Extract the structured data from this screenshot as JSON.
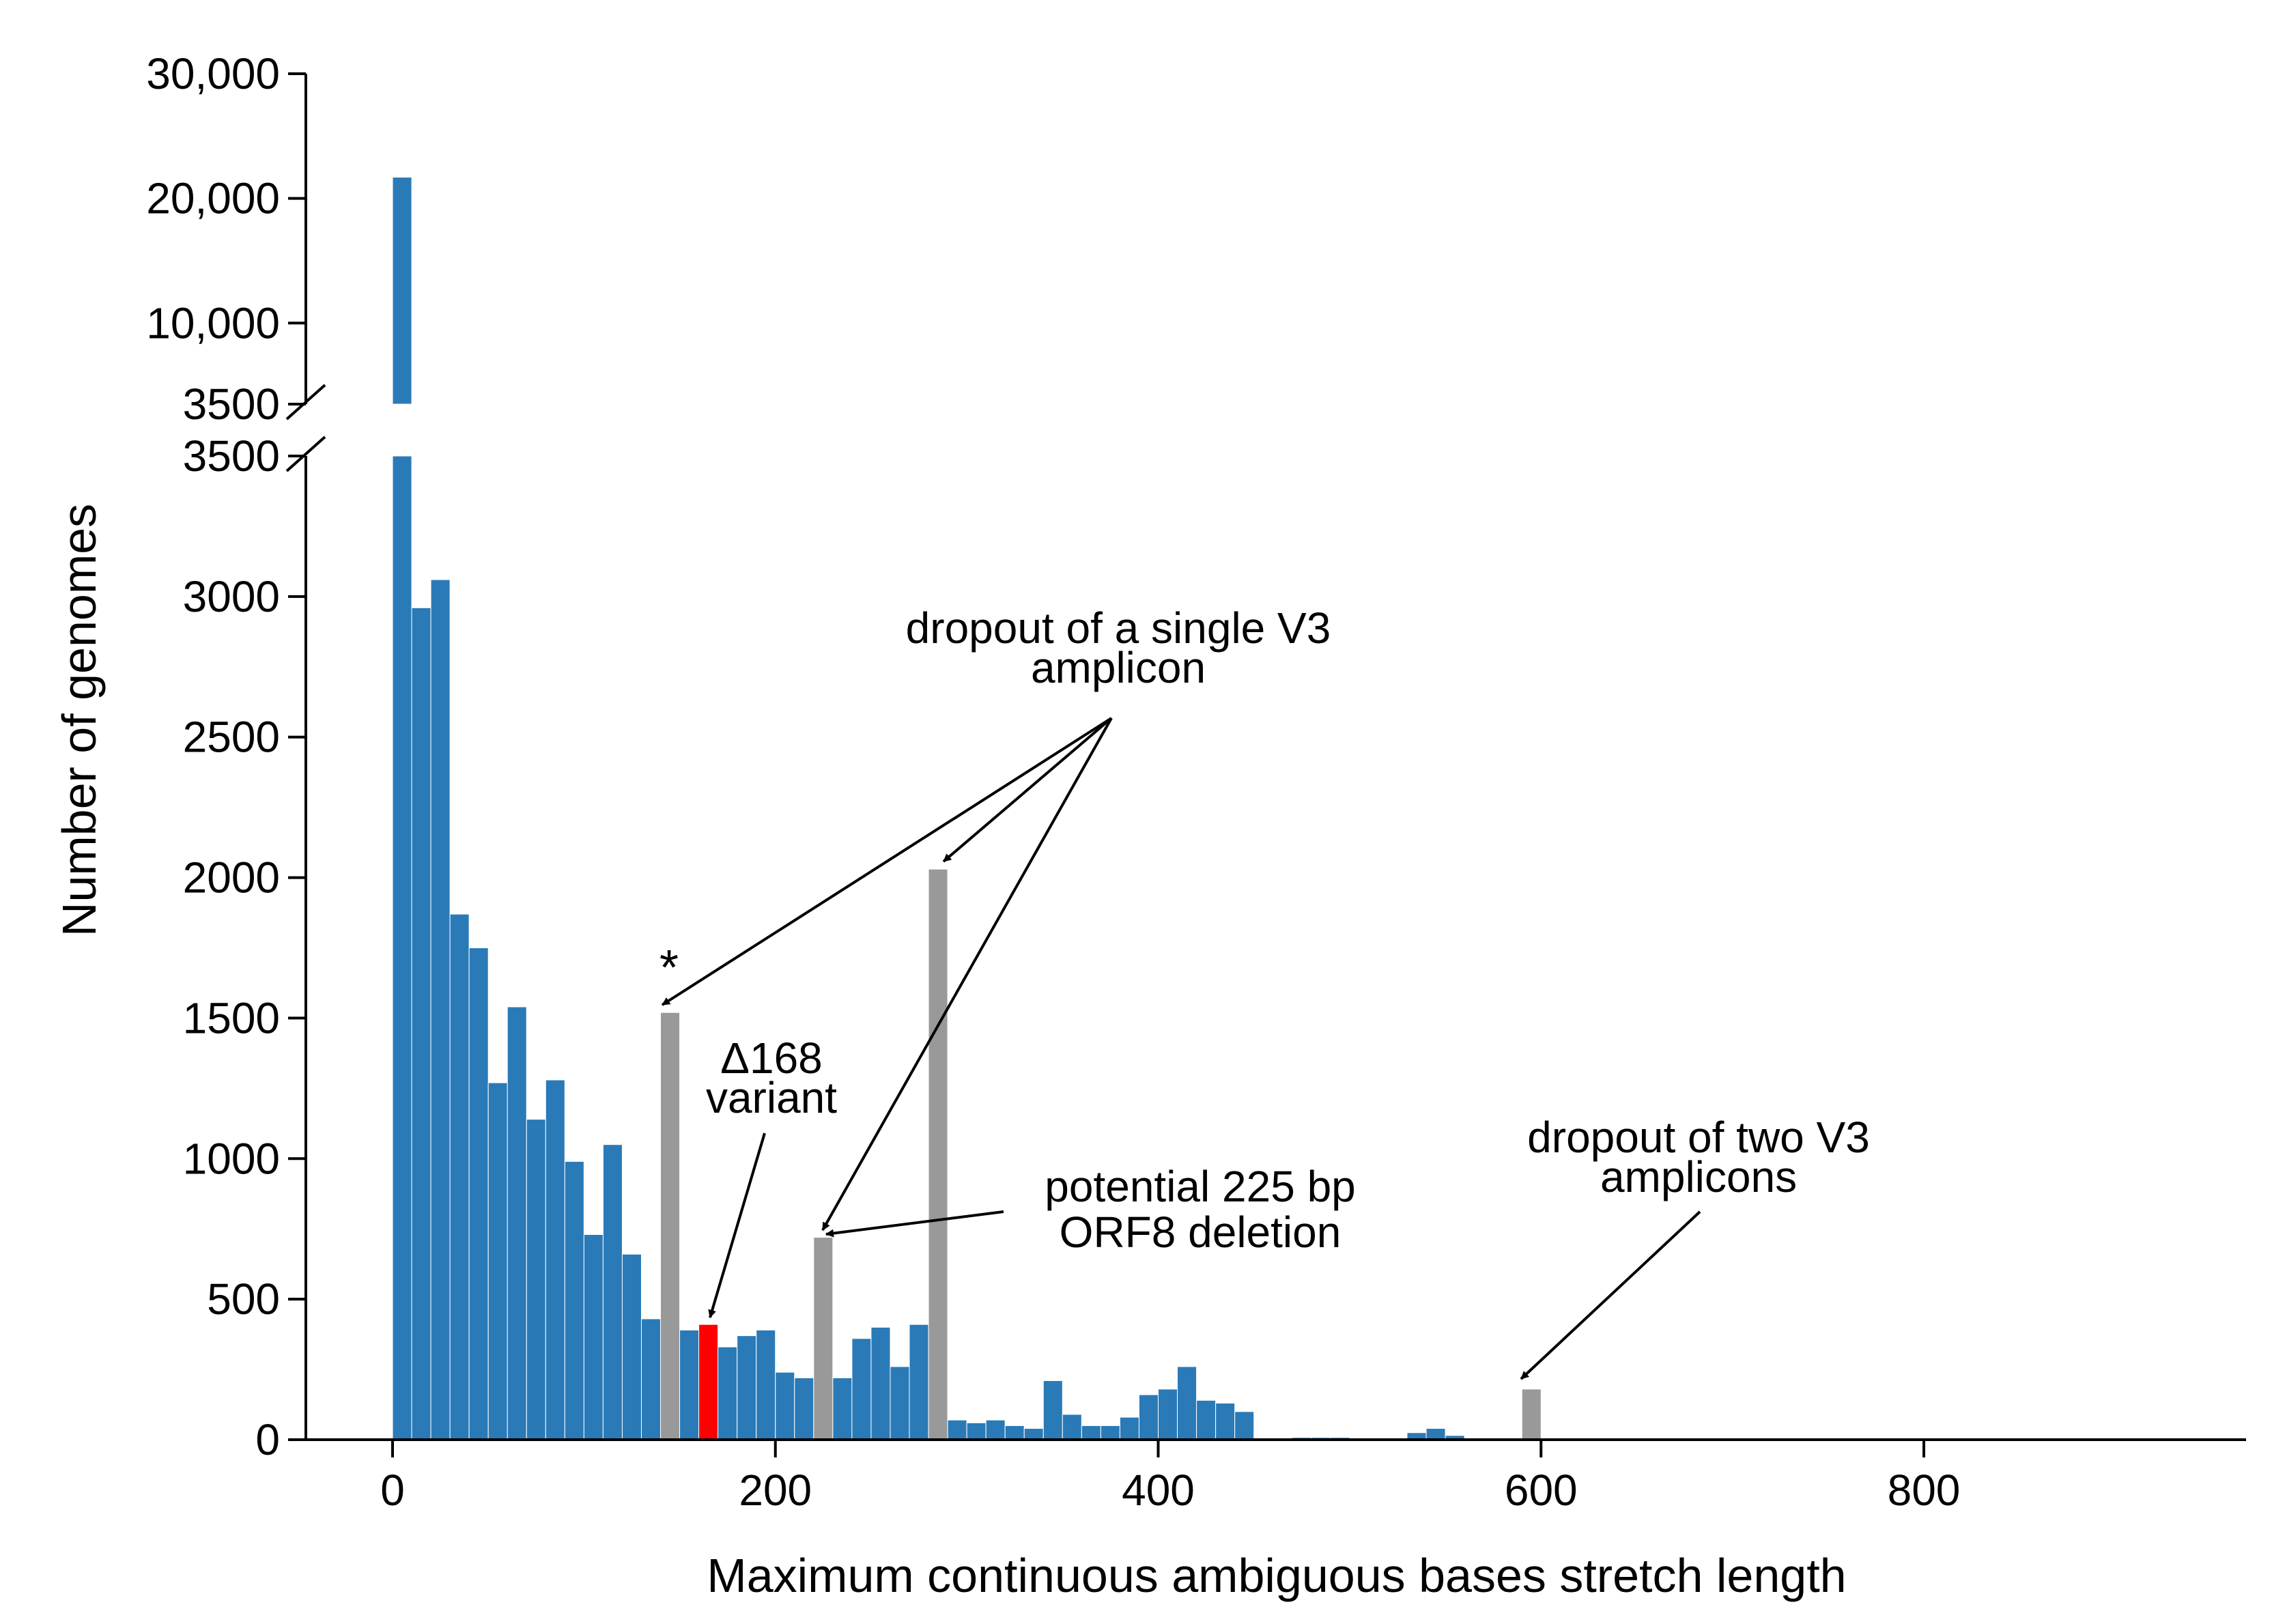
{
  "chart_data": {
    "type": "bar",
    "xlabel": "Maximum continuous ambiguous bases stretch length",
    "ylabel": "Number of genomes",
    "xlim": [
      -50,
      960
    ],
    "x_ticks": [
      0,
      200,
      400,
      600,
      800
    ],
    "x_tick_labels": [
      "0",
      "200",
      "400",
      "600",
      "800"
    ],
    "bin_width": 10,
    "y_axis_break": true,
    "y_lower_range": [
      0,
      3500
    ],
    "y_upper_range": [
      3500,
      30000
    ],
    "y_lower_ticks": [
      0,
      500,
      1000,
      1500,
      2000,
      2500,
      3000,
      3500
    ],
    "y_lower_tick_labels": [
      "0",
      "500",
      "1000",
      "1500",
      "2000",
      "2500",
      "3000",
      "3500"
    ],
    "y_upper_ticks": [
      3500,
      10000,
      20000,
      30000
    ],
    "y_upper_tick_labels": [
      "3500",
      "10,000",
      "20,000",
      "30,000"
    ],
    "grid": false,
    "colors": {
      "default": "#2a7ab8",
      "highlight_gray": "#999999",
      "highlight_red": "#ff0000"
    },
    "bars": [
      {
        "x": 0,
        "value": 21700,
        "color": "default"
      },
      {
        "x": 10,
        "value": 2960,
        "color": "default"
      },
      {
        "x": 20,
        "value": 3060,
        "color": "default"
      },
      {
        "x": 30,
        "value": 1870,
        "color": "default"
      },
      {
        "x": 40,
        "value": 1750,
        "color": "default"
      },
      {
        "x": 50,
        "value": 1270,
        "color": "default"
      },
      {
        "x": 60,
        "value": 1540,
        "color": "default"
      },
      {
        "x": 70,
        "value": 1140,
        "color": "default"
      },
      {
        "x": 80,
        "value": 1280,
        "color": "default"
      },
      {
        "x": 90,
        "value": 990,
        "color": "default"
      },
      {
        "x": 100,
        "value": 730,
        "color": "default"
      },
      {
        "x": 110,
        "value": 1050,
        "color": "default"
      },
      {
        "x": 120,
        "value": 660,
        "color": "default"
      },
      {
        "x": 130,
        "value": 430,
        "color": "default"
      },
      {
        "x": 140,
        "value": 1520,
        "color": "highlight_gray"
      },
      {
        "x": 150,
        "value": 390,
        "color": "default"
      },
      {
        "x": 160,
        "value": 410,
        "color": "highlight_red"
      },
      {
        "x": 170,
        "value": 330,
        "color": "default"
      },
      {
        "x": 180,
        "value": 370,
        "color": "default"
      },
      {
        "x": 190,
        "value": 390,
        "color": "default"
      },
      {
        "x": 200,
        "value": 240,
        "color": "default"
      },
      {
        "x": 210,
        "value": 220,
        "color": "default"
      },
      {
        "x": 220,
        "value": 720,
        "color": "highlight_gray"
      },
      {
        "x": 230,
        "value": 220,
        "color": "default"
      },
      {
        "x": 240,
        "value": 360,
        "color": "default"
      },
      {
        "x": 250,
        "value": 400,
        "color": "default"
      },
      {
        "x": 260,
        "value": 260,
        "color": "default"
      },
      {
        "x": 270,
        "value": 410,
        "color": "default"
      },
      {
        "x": 280,
        "value": 2030,
        "color": "highlight_gray"
      },
      {
        "x": 290,
        "value": 70,
        "color": "default"
      },
      {
        "x": 300,
        "value": 60,
        "color": "default"
      },
      {
        "x": 310,
        "value": 70,
        "color": "default"
      },
      {
        "x": 320,
        "value": 50,
        "color": "default"
      },
      {
        "x": 330,
        "value": 40,
        "color": "default"
      },
      {
        "x": 340,
        "value": 210,
        "color": "default"
      },
      {
        "x": 350,
        "value": 90,
        "color": "default"
      },
      {
        "x": 360,
        "value": 50,
        "color": "default"
      },
      {
        "x": 370,
        "value": 50,
        "color": "default"
      },
      {
        "x": 380,
        "value": 80,
        "color": "default"
      },
      {
        "x": 390,
        "value": 160,
        "color": "default"
      },
      {
        "x": 400,
        "value": 180,
        "color": "default"
      },
      {
        "x": 410,
        "value": 260,
        "color": "default"
      },
      {
        "x": 420,
        "value": 140,
        "color": "default"
      },
      {
        "x": 430,
        "value": 130,
        "color": "default"
      },
      {
        "x": 440,
        "value": 100,
        "color": "default"
      },
      {
        "x": 450,
        "value": 5,
        "color": "default"
      },
      {
        "x": 460,
        "value": 5,
        "color": "default"
      },
      {
        "x": 470,
        "value": 8,
        "color": "default"
      },
      {
        "x": 480,
        "value": 8,
        "color": "default"
      },
      {
        "x": 490,
        "value": 8,
        "color": "default"
      },
      {
        "x": 500,
        "value": 5,
        "color": "default"
      },
      {
        "x": 510,
        "value": 5,
        "color": "default"
      },
      {
        "x": 520,
        "value": 5,
        "color": "default"
      },
      {
        "x": 530,
        "value": 25,
        "color": "default"
      },
      {
        "x": 540,
        "value": 40,
        "color": "default"
      },
      {
        "x": 550,
        "value": 15,
        "color": "default"
      },
      {
        "x": 560,
        "value": 3,
        "color": "default"
      },
      {
        "x": 570,
        "value": 3,
        "color": "default"
      },
      {
        "x": 580,
        "value": 3,
        "color": "default"
      },
      {
        "x": 590,
        "value": 180,
        "color": "highlight_gray"
      }
    ],
    "annotations": [
      {
        "text_lines": [
          "dropout of a single V3",
          "amplicon"
        ],
        "targets_x": [
          145,
          225,
          285
        ]
      },
      {
        "text_lines": [
          "Δ168",
          "variant"
        ],
        "targets_x": [
          165
        ]
      },
      {
        "text_lines": [
          "potential 225 bp",
          "ORF8 deletion"
        ],
        "targets_x": [
          225
        ]
      },
      {
        "text_lines": [
          "dropout of two V3",
          "amplicons"
        ],
        "targets_x": [
          595
        ]
      },
      {
        "text_lines": [
          "*"
        ],
        "targets_x": [
          145
        ]
      }
    ]
  }
}
